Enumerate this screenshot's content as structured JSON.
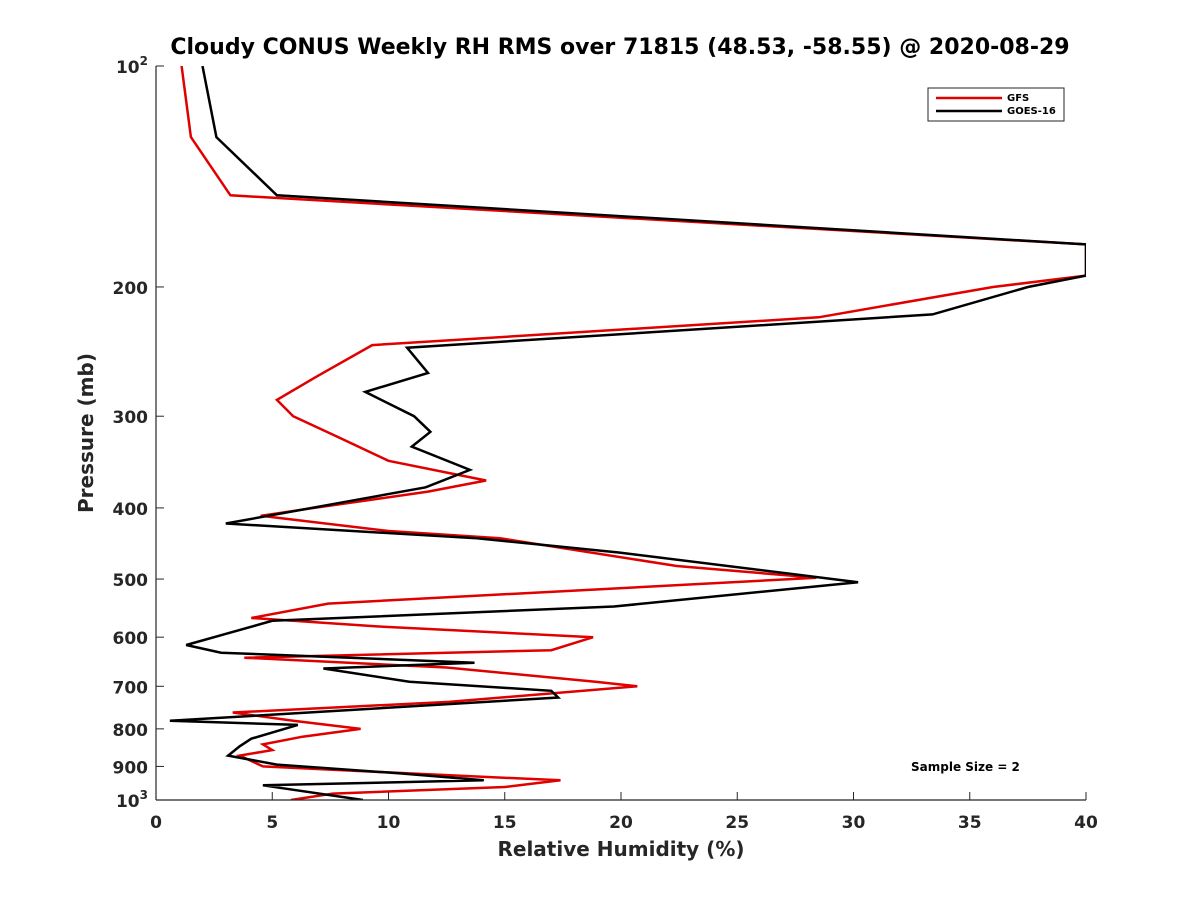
{
  "chart_data": {
    "type": "line",
    "title": "Cloudy CONUS Weekly RH RMS over 71815 (48.53, -58.55) @ 2020-08-29",
    "xlabel": "Relative Humidity (%)",
    "ylabel": "Pressure (mb)",
    "xlim": [
      0,
      40
    ],
    "ylim": [
      100,
      1000
    ],
    "y_scale": "log",
    "y_reversed": true,
    "grid": false,
    "legend_position": "top-right",
    "x_ticks": [
      0,
      5,
      10,
      15,
      20,
      25,
      30,
      35,
      40
    ],
    "x_tick_labels": [
      "0",
      "5",
      "10",
      "15",
      "20",
      "25",
      "30",
      "35",
      "40"
    ],
    "y_ticks": [
      {
        "value": 100,
        "base": "10",
        "exp": "2"
      },
      {
        "value": 200,
        "label": "200"
      },
      {
        "value": 300,
        "label": "300"
      },
      {
        "value": 400,
        "label": "400"
      },
      {
        "value": 500,
        "label": "500"
      },
      {
        "value": 600,
        "label": "600"
      },
      {
        "value": 700,
        "label": "700"
      },
      {
        "value": 800,
        "label": "800"
      },
      {
        "value": 900,
        "label": "900"
      },
      {
        "value": 1000,
        "base": "10",
        "exp": "3"
      }
    ],
    "annotation": "Sample Size = 2",
    "series": [
      {
        "name": "GFS",
        "color": "#e00000",
        "points": [
          [
            1.1,
            100
          ],
          [
            1.5,
            125
          ],
          [
            3.2,
            150
          ],
          [
            40,
            175
          ],
          [
            40,
            193
          ],
          [
            36.0,
            200
          ],
          [
            28.5,
            220
          ],
          [
            9.3,
            240
          ],
          [
            6.9,
            265
          ],
          [
            5.2,
            285
          ],
          [
            5.9,
            300
          ],
          [
            7.8,
            320
          ],
          [
            10.0,
            345
          ],
          [
            14.2,
            367
          ],
          [
            11.7,
            380
          ],
          [
            6.8,
            400
          ],
          [
            4.5,
            410
          ],
          [
            10.0,
            430
          ],
          [
            14.8,
            440
          ],
          [
            22.4,
            480
          ],
          [
            28.4,
            498
          ],
          [
            7.4,
            540
          ],
          [
            4.1,
            565
          ],
          [
            9.5,
            580
          ],
          [
            18.8,
            600
          ],
          [
            17.0,
            625
          ],
          [
            3.8,
            640
          ],
          [
            12.5,
            660
          ],
          [
            18.9,
            690
          ],
          [
            20.7,
            700
          ],
          [
            12.6,
            735
          ],
          [
            3.3,
            760
          ],
          [
            5.9,
            780
          ],
          [
            8.8,
            800
          ],
          [
            6.3,
            820
          ],
          [
            4.6,
            840
          ],
          [
            5.0,
            855
          ],
          [
            3.6,
            870
          ],
          [
            4.6,
            900
          ],
          [
            10.9,
            920
          ],
          [
            17.4,
            940
          ],
          [
            15.0,
            960
          ],
          [
            7.6,
            980
          ],
          [
            5.8,
            1000
          ]
        ]
      },
      {
        "name": "GOES-16",
        "color": "#000000",
        "points": [
          [
            2.0,
            100
          ],
          [
            2.6,
            125
          ],
          [
            5.2,
            150
          ],
          [
            40,
            175
          ],
          [
            40,
            193
          ],
          [
            37.5,
            200
          ],
          [
            33.4,
            218
          ],
          [
            10.8,
            242
          ],
          [
            11.7,
            262
          ],
          [
            9.0,
            278
          ],
          [
            11.1,
            300
          ],
          [
            11.8,
            315
          ],
          [
            11.0,
            330
          ],
          [
            13.5,
            355
          ],
          [
            11.6,
            375
          ],
          [
            3.0,
            420
          ],
          [
            13.8,
            440
          ],
          [
            19.9,
            460
          ],
          [
            30.2,
            505
          ],
          [
            19.7,
            545
          ],
          [
            5.0,
            570
          ],
          [
            1.3,
            615
          ],
          [
            2.8,
            630
          ],
          [
            13.7,
            650
          ],
          [
            7.2,
            662
          ],
          [
            10.9,
            690
          ],
          [
            17.0,
            710
          ],
          [
            17.3,
            725
          ],
          [
            0.6,
            780
          ],
          [
            6.1,
            790
          ],
          [
            4.1,
            825
          ],
          [
            3.6,
            845
          ],
          [
            3.1,
            870
          ],
          [
            5.2,
            895
          ],
          [
            10.5,
            920
          ],
          [
            14.1,
            940
          ],
          [
            4.6,
            955
          ],
          [
            8.9,
            1000
          ]
        ]
      }
    ]
  }
}
